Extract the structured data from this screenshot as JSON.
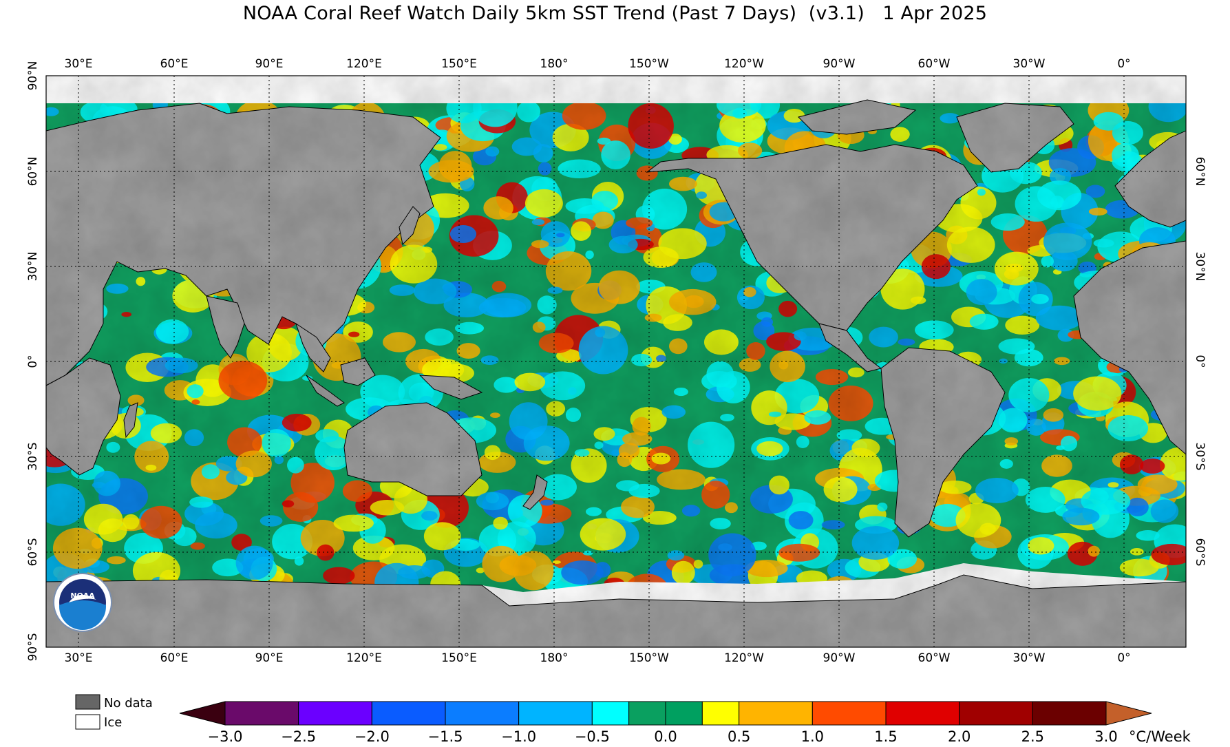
{
  "title": "NOAA Coral Reef Watch Daily 5km SST Trend (Past 7 Days)  (v3.1)   1 Apr 2025",
  "lon_labels": [
    "30°E",
    "60°E",
    "90°E",
    "120°E",
    "150°E",
    "180°",
    "150°W",
    "120°W",
    "90°W",
    "60°W",
    "30°W",
    "0°"
  ],
  "lat_labels_left": [
    "90°N",
    "60°N",
    "30°N",
    "0°",
    "30°S",
    "60°S",
    "90°S"
  ],
  "lat_labels_right": [
    "60°N",
    "30°N",
    "0°",
    "30°S",
    "60°S"
  ],
  "legend": {
    "no_data": "No data",
    "ice": "Ice"
  },
  "colorbar": {
    "unit": "°C/Week",
    "ticks": [
      "−3.0",
      "−2.5",
      "−2.0",
      "−1.5",
      "−1.0",
      "−0.5",
      "0.0",
      "0.5",
      "1.0",
      "1.5",
      "2.0",
      "2.5",
      "3.0"
    ],
    "colors": [
      "#6a0a6a",
      "#6b00ff",
      "#0a5cff",
      "#0b7dff",
      "#00b4ff",
      "#00ffff",
      "#0aa060",
      "#00a060",
      "#ffff00",
      "#ffb400",
      "#ff4b00",
      "#e00000",
      "#a00000",
      "#6b0000"
    ],
    "under_color": "#3a0010",
    "over_color": "#c4602a"
  },
  "map_colors": {
    "land": "#a0a0a0",
    "ice": "#ffffff",
    "ocean_base": "#10a060"
  },
  "logo_text": "NOAA"
}
